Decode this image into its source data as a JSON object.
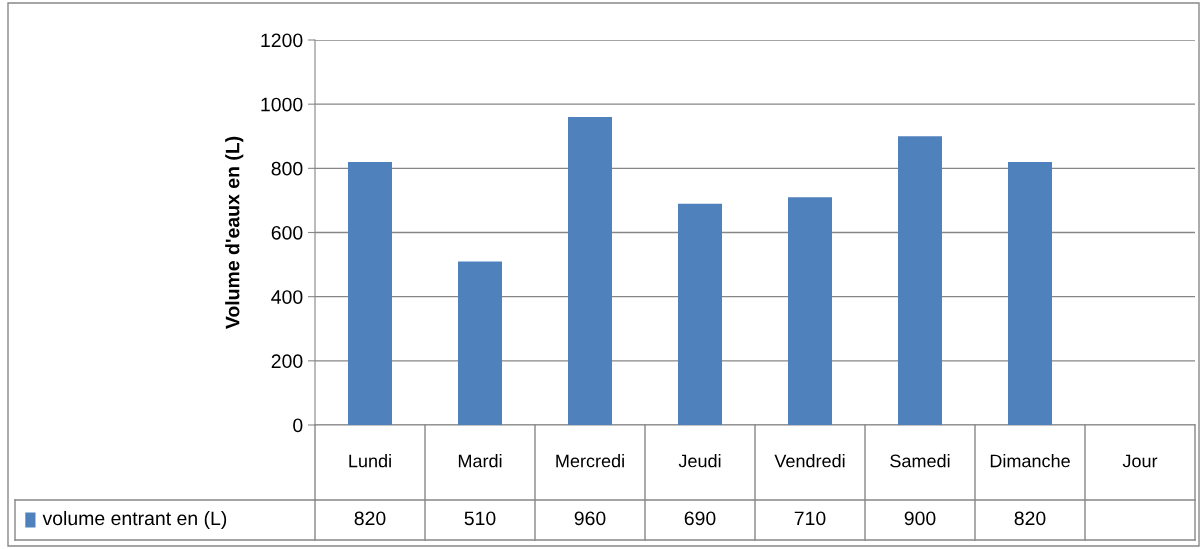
{
  "chart_data": {
    "type": "bar",
    "ylabel": "Volume d'eaux en (L)",
    "categories": [
      "Lundi",
      "Mardi",
      "Mercredi",
      "Jeudi",
      "Vendredi",
      "Samedi",
      "Dimanche",
      "Jour"
    ],
    "series": [
      {
        "name": "volume entrant en (L)",
        "color": "#4f81bd",
        "values": [
          820,
          510,
          960,
          690,
          710,
          900,
          820,
          null
        ]
      }
    ],
    "ylim": [
      0,
      1200
    ],
    "yticks": [
      0,
      200,
      400,
      600,
      800,
      1000,
      1200
    ],
    "grid": "y",
    "legend": "bottom",
    "data_labels": true
  }
}
